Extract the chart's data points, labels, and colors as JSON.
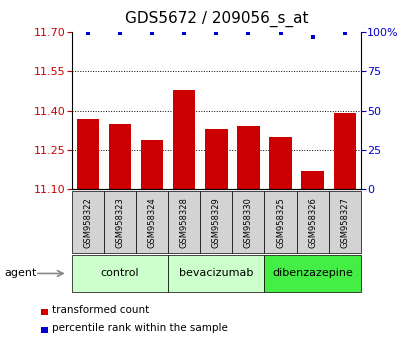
{
  "title": "GDS5672 / 209056_s_at",
  "samples": [
    "GSM958322",
    "GSM958323",
    "GSM958324",
    "GSM958328",
    "GSM958329",
    "GSM958330",
    "GSM958325",
    "GSM958326",
    "GSM958327"
  ],
  "transformed_counts": [
    11.37,
    11.35,
    11.29,
    11.48,
    11.33,
    11.34,
    11.3,
    11.17,
    11.39
  ],
  "percentile_ranks": [
    99,
    99,
    99,
    99,
    99,
    99,
    99,
    97,
    99
  ],
  "ylim_left": [
    11.1,
    11.7
  ],
  "ylim_right": [
    0,
    100
  ],
  "yticks_left": [
    11.1,
    11.25,
    11.4,
    11.55,
    11.7
  ],
  "yticks_right": [
    0,
    25,
    50,
    75,
    100
  ],
  "bar_color": "#cc0000",
  "dot_color": "#0000cc",
  "groups": [
    {
      "label": "control",
      "start": 0,
      "end": 3,
      "color": "#ccffcc"
    },
    {
      "label": "bevacizumab",
      "start": 3,
      "end": 6,
      "color": "#ccffcc"
    },
    {
      "label": "dibenzazepine",
      "start": 6,
      "end": 9,
      "color": "#44ee44"
    }
  ],
  "agent_label": "agent",
  "legend_bar_label": "transformed count",
  "legend_dot_label": "percentile rank within the sample",
  "title_fontsize": 11,
  "tick_fontsize": 8,
  "sample_fontsize": 6,
  "group_fontsize": 8
}
